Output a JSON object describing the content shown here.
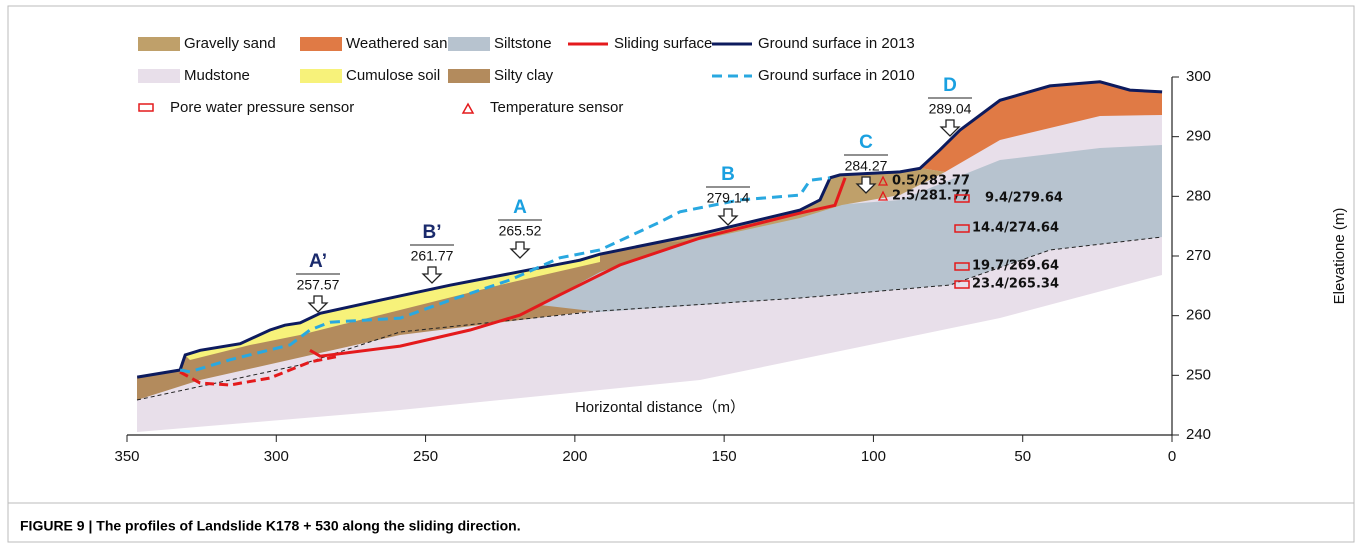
{
  "chart_data": {
    "type": "profile",
    "xlabel": "Horizontal distance（m）",
    "ylabel": "Elevatione (m)",
    "xlim": [
      350,
      0
    ],
    "ylim": [
      240,
      300
    ],
    "xticks": [
      350,
      300,
      250,
      200,
      150,
      100,
      50,
      0
    ],
    "yticks": [
      240,
      250,
      260,
      270,
      280,
      290,
      300
    ],
    "series": [
      {
        "name": "Sliding surface",
        "color": "#e41a1c",
        "dash": false,
        "x": [
          288.7,
          285.3,
          258.5,
          235.1,
          218.4,
          205.0,
          184.9,
          158.1,
          124.6,
          112.9,
          109.5
        ],
        "values": [
          254.2,
          253.2,
          254.9,
          257.6,
          260.1,
          263.5,
          268.5,
          273.0,
          277.2,
          278.5,
          283.1
        ]
      },
      {
        "name": "Ground surface in 2013",
        "color": "#0d1b5e",
        "dash": false,
        "x": [
          346.6,
          332.2,
          330.5,
          325.5,
          312.1,
          302.1,
          297.1,
          292.0,
          285.3,
          265.2,
          241.8,
          215.0,
          198.3,
          191.6,
          158.1,
          124.6,
          117.9,
          114.5,
          111.2,
          91.1,
          84.4,
          77.7,
          71.0,
          57.6,
          40.9,
          24.1,
          14.1,
          3.3
        ],
        "values": [
          249.7,
          250.9,
          253.4,
          254.2,
          255.3,
          257.6,
          258.4,
          258.8,
          260.4,
          262.6,
          265.1,
          267.7,
          269.3,
          270.3,
          273.7,
          277.7,
          279.4,
          283.1,
          283.6,
          284.1,
          284.7,
          287.8,
          291.1,
          296.1,
          298.5,
          299.2,
          297.8,
          297.5
        ]
      },
      {
        "name": "Ground surface in 2010",
        "color": "#29a8e0",
        "dash": true,
        "x": [
          332.2,
          328.9,
          315.5,
          295.4,
          288.7,
          282.0,
          258.5,
          241.8,
          221.7,
          205.0,
          191.6,
          171.5,
          164.8,
          144.7,
          124.6,
          121.2,
          114.5
        ],
        "values": [
          250.9,
          250.6,
          252.6,
          255.1,
          257.6,
          258.9,
          259.6,
          262.6,
          266.0,
          269.7,
          271.0,
          275.7,
          277.4,
          279.4,
          280.2,
          282.7,
          283.1
        ]
      }
    ]
  },
  "strata": [
    {
      "name": "Gravelly sand",
      "color": "#bfa06a"
    },
    {
      "name": "Weathered sand",
      "color": "#e07a45"
    },
    {
      "name": "Siltstone",
      "color": "#b7c3cf"
    },
    {
      "name": "Mudstone",
      "color": "#e8dfea"
    },
    {
      "name": "Cumulose soil",
      "color": "#f7f27a"
    },
    {
      "name": "Silty clay",
      "color": "#b38b5d"
    }
  ],
  "markers": [
    {
      "letter": "A’",
      "elevation": "257.57",
      "color": "#1a2a6c"
    },
    {
      "letter": "B’",
      "elevation": "261.77",
      "color": "#1a2a6c"
    },
    {
      "letter": "A",
      "elevation": "265.52",
      "color": "#1aa0e0"
    },
    {
      "letter": "B",
      "elevation": "279.14",
      "color": "#1aa0e0"
    },
    {
      "letter": "C",
      "elevation": "284.27",
      "color": "#1aa0e0"
    },
    {
      "letter": "D",
      "elevation": "289.04",
      "color": "#1aa0e0"
    }
  ],
  "sensors": {
    "pore": {
      "name": "Pore water pressure sensor",
      "readings": [
        "9.4/279.64",
        "14.4/274.64",
        "19.7/269.64",
        "23.4/265.34"
      ]
    },
    "temperature": {
      "name": "Temperature sensor",
      "readings": [
        "0.5/283.77",
        "2.5/281.77"
      ]
    }
  },
  "caption": "FIGURE 9 | The profiles of Landslide K178 + 530 along the sliding direction."
}
